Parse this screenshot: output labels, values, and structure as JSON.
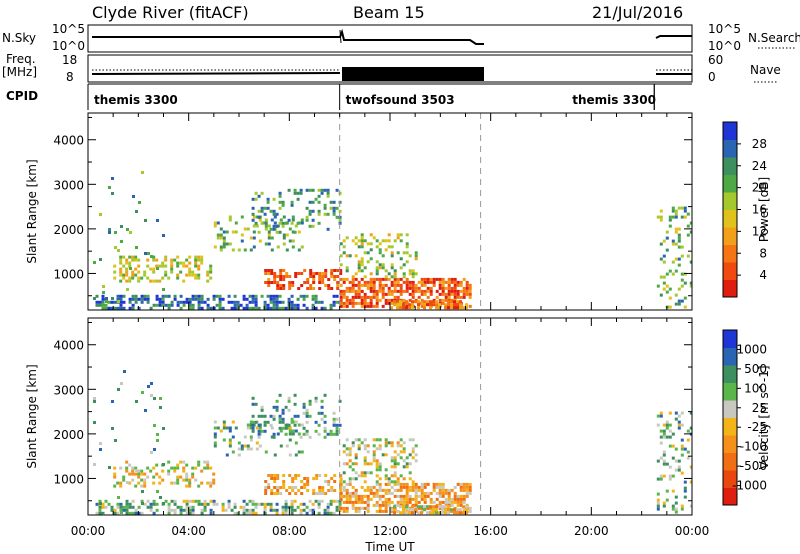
{
  "header": {
    "station": "Clyde River (fitACF)",
    "beam": "Beam 15",
    "date": "21/Jul/2016"
  },
  "top_panels": {
    "nsky_label": "N.Sky",
    "nsky_ticks": [
      "10^5",
      "10^0"
    ],
    "nsearch_label": "N.Search",
    "nsearch_ticks": [
      "10^5",
      "10^0"
    ],
    "freq_label": "Freq.",
    "freq_unit": "[MHz]",
    "freq_ticks": [
      "18",
      "8"
    ],
    "nave_label": "Nave",
    "nave_ticks": [
      "60",
      "0"
    ],
    "cpid_label": "CPID",
    "cpid_segments": [
      {
        "name": "themis 3300",
        "start_h": 0,
        "end_h": 10
      },
      {
        "name": "twofsound 3503",
        "start_h": 10,
        "end_h": 15.6
      },
      {
        "name": "themis 3300",
        "start_h": 22.5,
        "end_h": 24
      }
    ]
  },
  "chart_data": [
    {
      "type": "heatmap",
      "title": "Power",
      "ylabel": "Slant Range [km]",
      "colorbar_label": "Power [dB]",
      "colorbar_ticks": [
        "28",
        "24",
        "20",
        "16",
        "12",
        "8",
        "4"
      ],
      "colors": [
        "#1f35d6",
        "#2c64b4",
        "#3d8f5e",
        "#4ea843",
        "#a4c92d",
        "#e0c21d",
        "#f2a019",
        "#f57513",
        "#f04a10",
        "#e01e10"
      ],
      "xlim": [
        0,
        24
      ],
      "ylim": [
        180,
        4600
      ],
      "yticks": [
        1000,
        2000,
        3000,
        4000
      ],
      "gaps": [
        [
          15.6,
          22.5
        ]
      ],
      "dashed_lines": [
        10,
        15.6
      ]
    },
    {
      "type": "heatmap",
      "title": "Velocity",
      "ylabel": "Slant Range [km]",
      "xlabel": "Time UT",
      "colorbar_label": "Velocity [m s^-1]",
      "colorbar_ticks": [
        "1000",
        "500",
        "100",
        "25",
        "-25",
        "-100",
        "-500",
        "-1000"
      ],
      "colors": [
        "#1f35d6",
        "#2c64b4",
        "#3d8f5e",
        "#5ab54a",
        "#c8c8c0",
        "#f2b419",
        "#f5901a",
        "#f26e12",
        "#e8480f",
        "#e01e10"
      ],
      "xlim": [
        0,
        24
      ],
      "ylim": [
        180,
        4600
      ],
      "yticks": [
        1000,
        2000,
        3000,
        4000
      ],
      "xticks": [
        "00:00",
        "04:00",
        "08:00",
        "12:00",
        "16:00",
        "20:00",
        "00:00"
      ],
      "gaps": [
        [
          15.6,
          22.5
        ]
      ],
      "dashed_lines": [
        10,
        15.6
      ]
    }
  ]
}
